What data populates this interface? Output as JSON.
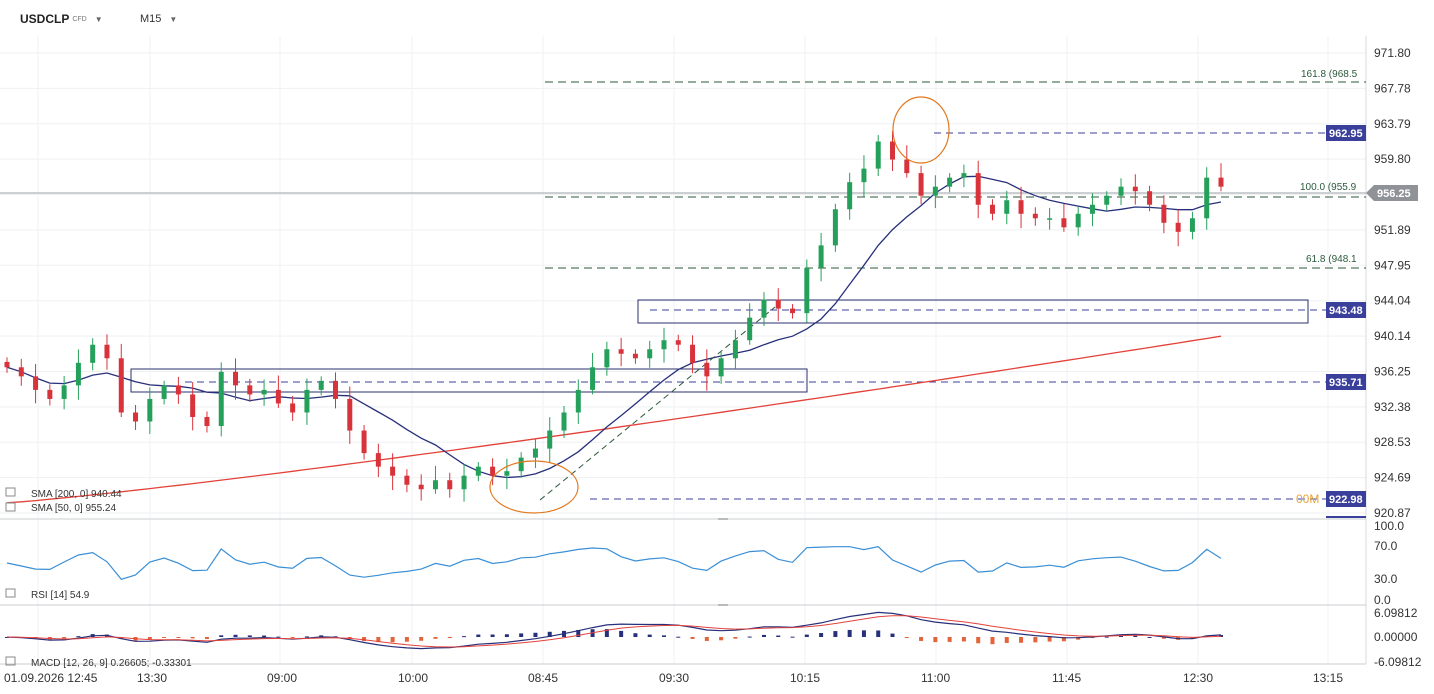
{
  "header": {
    "symbol": "USDCLP",
    "instrument_type": "CFD",
    "timeframe": "M15"
  },
  "colors": {
    "bull": "#24a05a",
    "bear": "#d8333b",
    "sma50": "#27307a",
    "sma200": "#e3423a",
    "rsi": "#3a8fd6",
    "fib": "#2b5a3a",
    "level_tag": "#3b3f9c",
    "price_tag": "#8f9296",
    "highlight": "#e2781e"
  },
  "price_axis": {
    "ticks": [
      "971.80",
      "967.78",
      "963.79",
      "959.80",
      "955.83",
      "951.89",
      "947.95",
      "944.04",
      "940.14",
      "936.25",
      "932.38",
      "928.53",
      "924.69",
      "920.87"
    ],
    "current_price": "956.25",
    "level_tags": [
      "962.95",
      "943.48",
      "935.71",
      "922.98"
    ],
    "countdown_stub": "00M"
  },
  "fib_labels": [
    "161.8 (968.5",
    "100.0 (955.9",
    "61.8 (948.1"
  ],
  "time_axis": [
    "01.09.2026 12:45",
    "13:30",
    "09:00",
    "10:00",
    "08:45",
    "09:30",
    "10:15",
    "11:00",
    "11:45",
    "12:30",
    "13:15"
  ],
  "legend": {
    "sma200": "SMA [200, 0] 940.44",
    "sma50": "SMA [50, 0] 955.24"
  },
  "rsi": {
    "label": "RSI [14] 54.9",
    "ticks": [
      "100.0",
      "70.0",
      "30.0",
      "0.0"
    ]
  },
  "macd": {
    "label": "MACD [12, 26, 9] 0.26605; -0.33301",
    "ticks": [
      "6.09812",
      "0.00000",
      "-6.09812"
    ]
  },
  "chart_data": {
    "type": "candlestick",
    "title": "USDCLP",
    "timeframe": "M15",
    "ylim": [
      920.87,
      971.8
    ],
    "key_levels": [
      962.95,
      943.48,
      935.71,
      922.98
    ],
    "fibonacci": [
      {
        "level": "161.8",
        "price": 968.5
      },
      {
        "level": "100.0",
        "price": 955.9
      },
      {
        "level": "61.8",
        "price": 948.1
      }
    ],
    "current_price": 956.25,
    "close_path": [
      937.0,
      936.0,
      934.5,
      933.5,
      935.0,
      937.5,
      939.5,
      938.0,
      932.0,
      931.0,
      933.5,
      935.0,
      934.0,
      931.5,
      930.5,
      936.5,
      935.0,
      934.0,
      934.5,
      933.0,
      932.0,
      934.5,
      935.5,
      933.5,
      930.0,
      927.5,
      926.0,
      925.0,
      924.0,
      923.5,
      924.5,
      923.5,
      925.0,
      926.0,
      925.0,
      925.5,
      927.0,
      928.0,
      930.0,
      932.0,
      934.5,
      937.0,
      939.0,
      938.5,
      938.0,
      939.0,
      940.0,
      939.5,
      937.5,
      936.0,
      938.0,
      940.0,
      942.5,
      944.5,
      943.5,
      943.0,
      948.0,
      950.5,
      954.5,
      957.5,
      959.0,
      962.0,
      960.0,
      958.5,
      956.0,
      957.0,
      958.0,
      958.5,
      955.0,
      954.0,
      955.5,
      954.0,
      953.5,
      953.5,
      952.5,
      954.0,
      955.0,
      956.0,
      957.0,
      956.5,
      955.0,
      953.0,
      952.0,
      953.5,
      958.0,
      957.0
    ],
    "sma200_last": 940.44,
    "sma50_last": 955.24,
    "rsi_last": 54.9,
    "macd_last": [
      0.26605,
      -0.33301
    ]
  }
}
